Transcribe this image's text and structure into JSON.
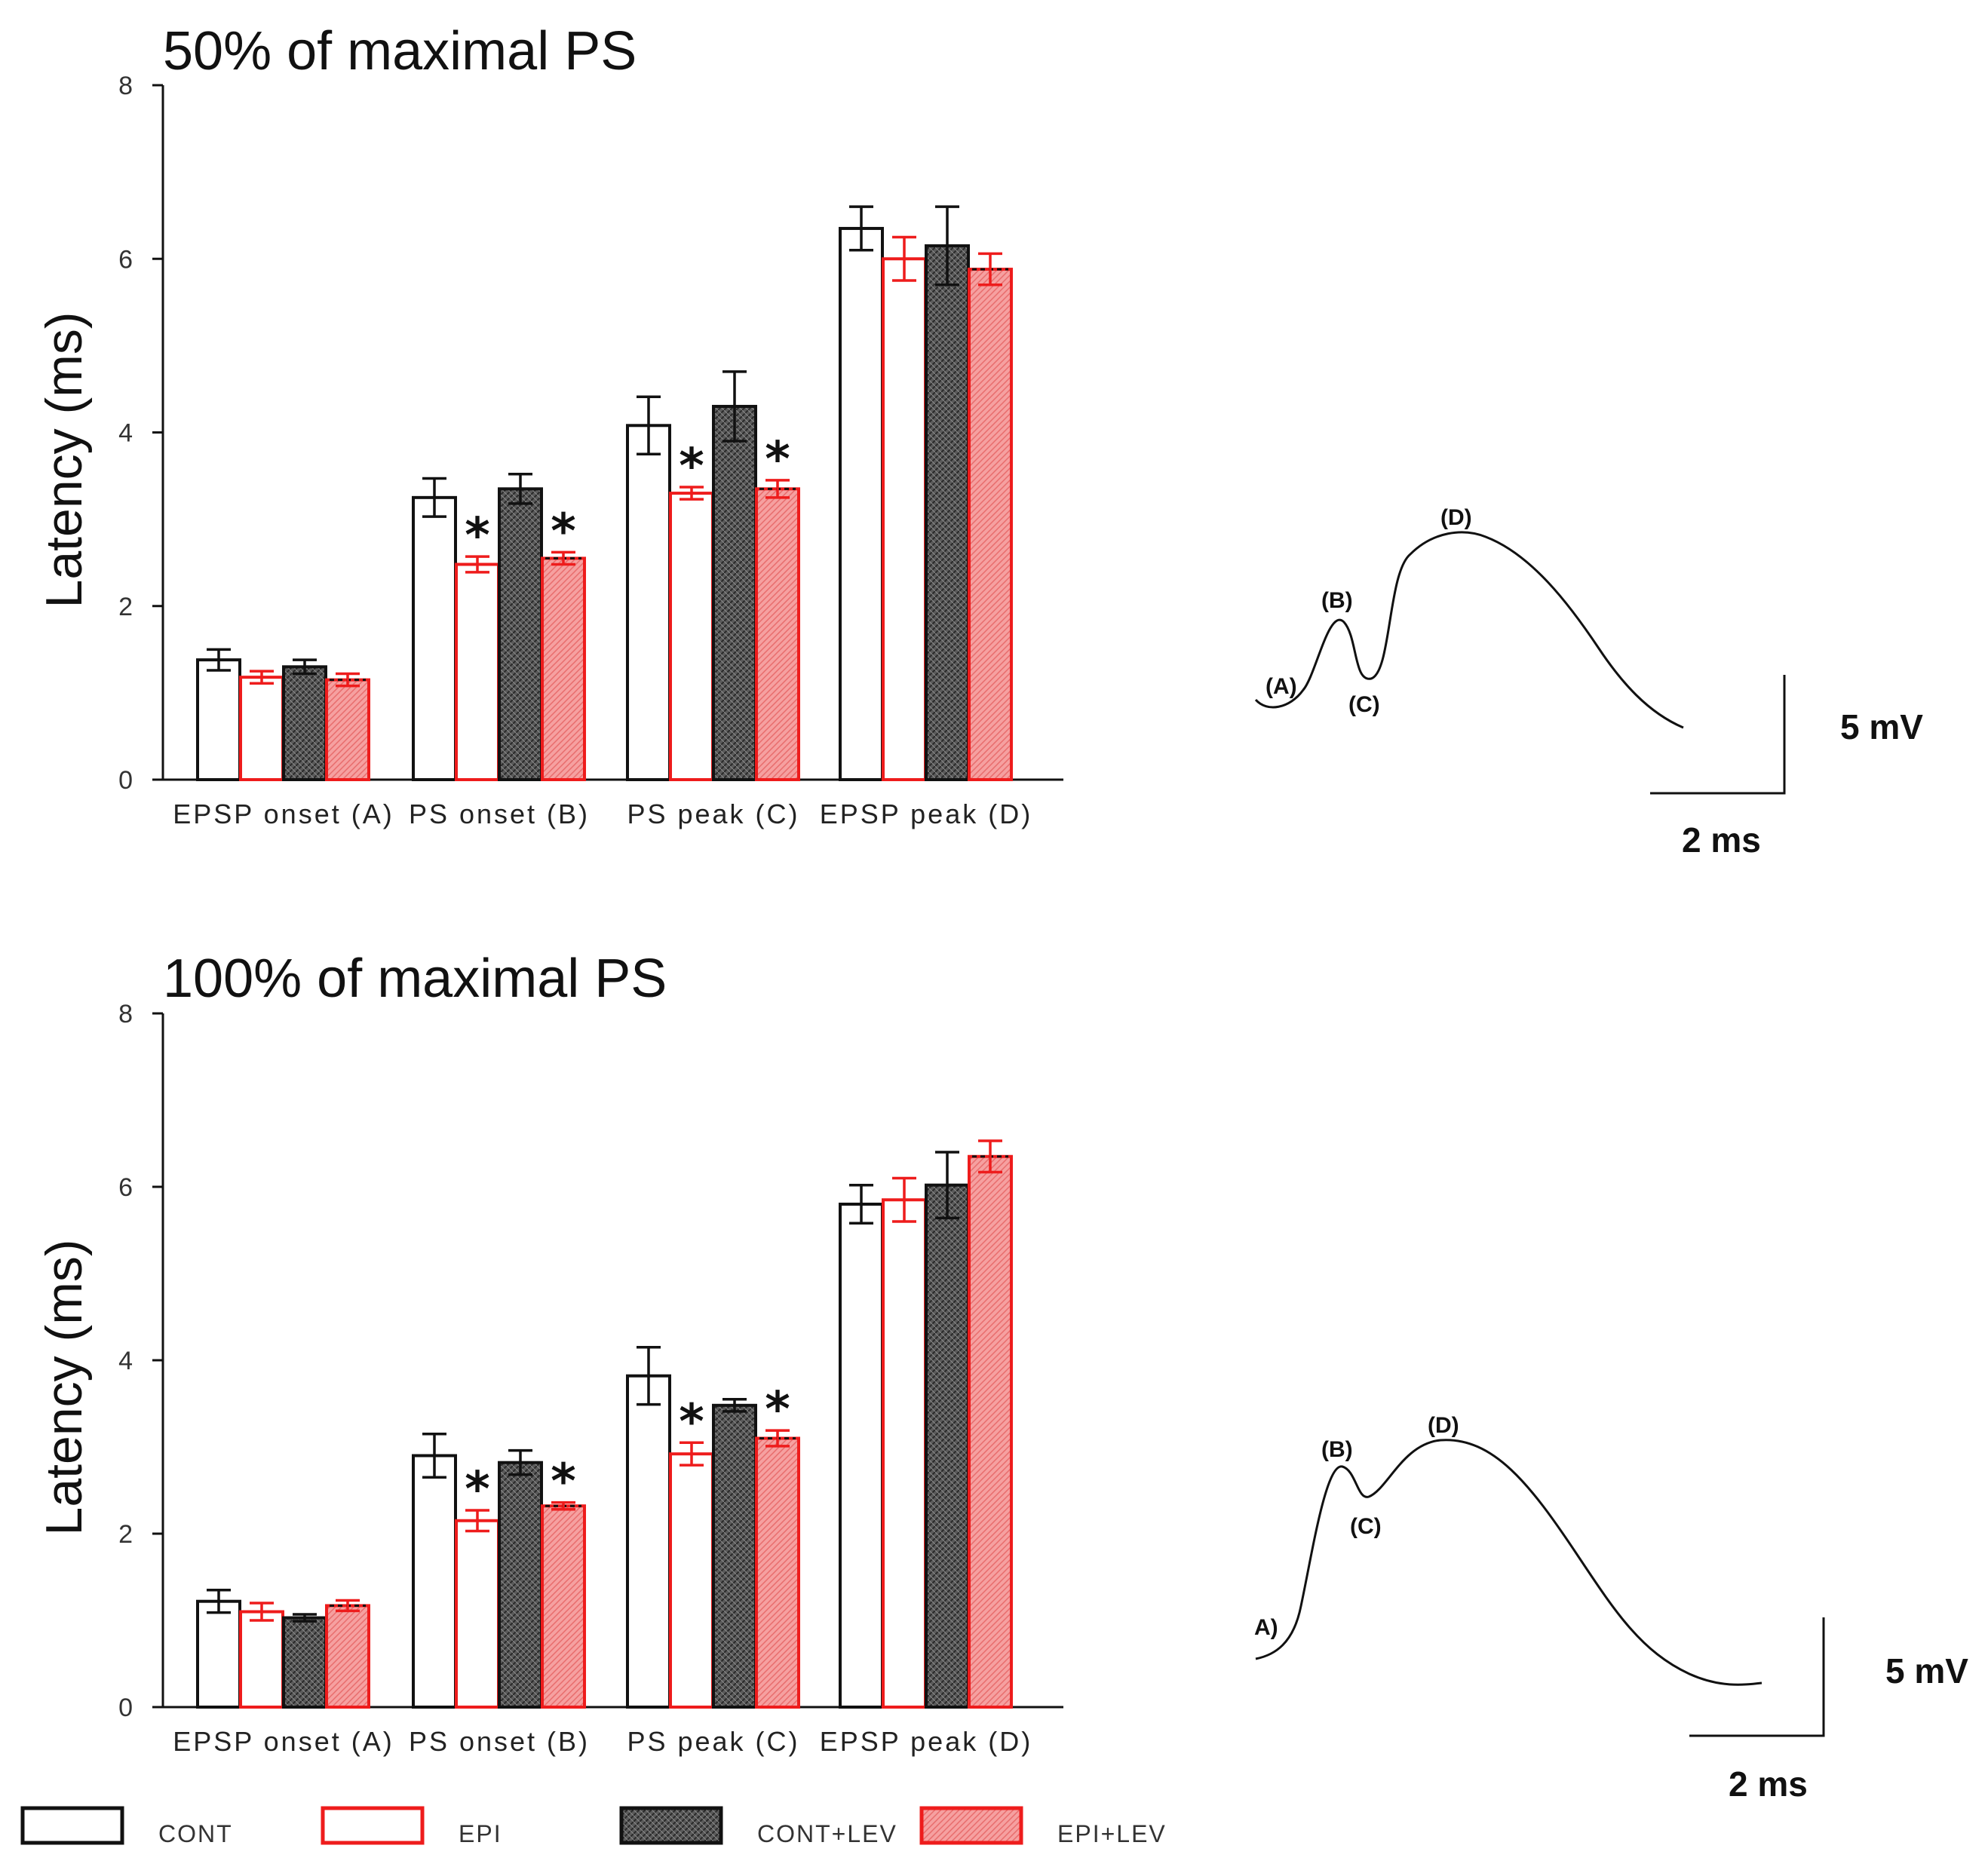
{
  "colors": {
    "cont_fill": "#ffffff",
    "cont_stroke": "#111111",
    "epi_fill": "#ffffff",
    "epi_stroke": "#ee1c1c",
    "contlev_fill": "#555555",
    "contlev_stroke": "#111111",
    "epilev_fill": "#f59494",
    "epilev_stroke": "#ee1c1c"
  },
  "chart_data": [
    {
      "type": "bar",
      "title": "50% of maximal PS",
      "xlabel": "",
      "ylabel": "Latency (ms)",
      "ylim": [
        0,
        8
      ],
      "yticks": [
        "0",
        "2",
        "4",
        "6",
        "8"
      ],
      "categories": [
        "EPSP onset (A)",
        "PS onset (B)",
        "PS peak (C)",
        "EPSP peak (D)"
      ],
      "series": [
        {
          "name": "CONT",
          "values": [
            1.38,
            3.25,
            4.08,
            6.35
          ],
          "errors": [
            0.12,
            0.22,
            0.33,
            0.25
          ]
        },
        {
          "name": "EPI",
          "values": [
            1.18,
            2.48,
            3.3,
            6.0
          ],
          "errors": [
            0.07,
            0.09,
            0.07,
            0.25
          ]
        },
        {
          "name": "CONT+LEV",
          "values": [
            1.3,
            3.35,
            4.3,
            6.15
          ],
          "errors": [
            0.08,
            0.17,
            0.4,
            0.45
          ]
        },
        {
          "name": "EPI+LEV",
          "values": [
            1.15,
            2.55,
            3.35,
            5.88
          ],
          "errors": [
            0.07,
            0.07,
            0.1,
            0.18
          ]
        }
      ],
      "significance": [
        {
          "category": 1,
          "series": 1,
          "label": "*"
        },
        {
          "category": 1,
          "series": 3,
          "label": "*"
        },
        {
          "category": 2,
          "series": 1,
          "label": "*"
        },
        {
          "category": 2,
          "series": 3,
          "label": "*"
        }
      ],
      "waveform": {
        "labels": [
          "(A)",
          "(B)",
          "(C)",
          "(D)"
        ],
        "scale_voltage": "5 mV",
        "scale_time": "2 ms"
      }
    },
    {
      "type": "bar",
      "title": "100% of maximal PS",
      "xlabel": "",
      "ylabel": "Latency (ms)",
      "ylim": [
        0,
        8
      ],
      "yticks": [
        "0",
        "2",
        "4",
        "6",
        "8"
      ],
      "categories": [
        "EPSP onset (A)",
        "PS onset (B)",
        "PS peak (C)",
        "EPSP peak (D)"
      ],
      "series": [
        {
          "name": "CONT",
          "values": [
            1.22,
            2.9,
            3.82,
            5.8
          ],
          "errors": [
            0.13,
            0.25,
            0.33,
            0.22
          ]
        },
        {
          "name": "EPI",
          "values": [
            1.1,
            2.15,
            2.92,
            5.85
          ],
          "errors": [
            0.1,
            0.12,
            0.13,
            0.25
          ]
        },
        {
          "name": "CONT+LEV",
          "values": [
            1.03,
            2.82,
            3.48,
            6.02
          ],
          "errors": [
            0.04,
            0.14,
            0.07,
            0.38
          ]
        },
        {
          "name": "EPI+LEV",
          "values": [
            1.17,
            2.32,
            3.1,
            6.35
          ],
          "errors": [
            0.06,
            0.04,
            0.09,
            0.18
          ]
        }
      ],
      "significance": [
        {
          "category": 1,
          "series": 1,
          "label": "*"
        },
        {
          "category": 1,
          "series": 3,
          "label": "*"
        },
        {
          "category": 2,
          "series": 1,
          "label": "*"
        },
        {
          "category": 2,
          "series": 3,
          "label": "*"
        }
      ],
      "waveform": {
        "labels": [
          "A)",
          "(B)",
          "(C)",
          "(D)"
        ],
        "scale_voltage": "5 mV",
        "scale_time": "2 ms"
      }
    }
  ],
  "legend": [
    "CONT",
    "EPI",
    "CONT+LEV",
    "EPI+LEV"
  ]
}
